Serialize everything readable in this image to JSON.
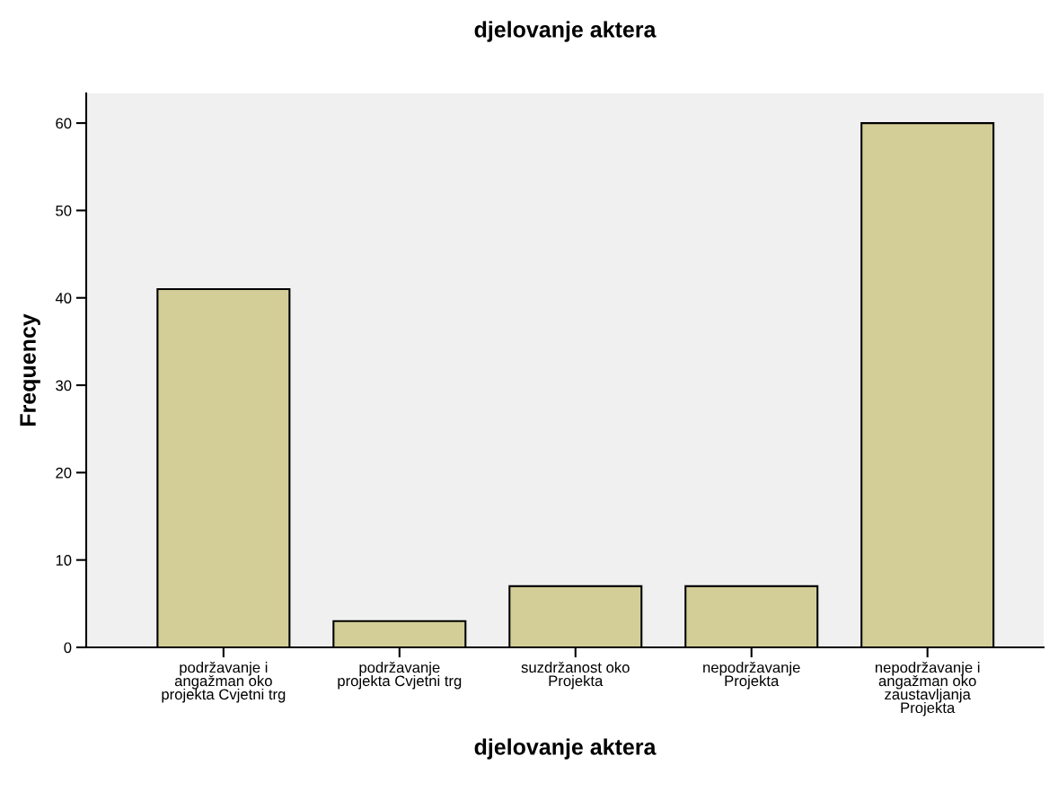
{
  "chart_data": {
    "type": "bar",
    "title": "djelovanje aktera",
    "xlabel": "djelovanje aktera",
    "ylabel": "Frequency",
    "categories": [
      "podržavanje i\nangažman oko\nprojekta Cvjetni trg",
      "podržavanje\nprojekta Cvjetni trg",
      "suzdržanost oko\nProjekta",
      "nepodržavanje\nProjekta",
      "nepodržavanje i\nangažman oko\nzaustavljanja\nProjekta"
    ],
    "values": [
      41,
      3,
      7,
      7,
      60
    ],
    "color": "#d3ce97",
    "ylim": [
      0,
      63.4
    ],
    "yticks": [
      0,
      10,
      20,
      30,
      40,
      50,
      60
    ],
    "grid": false,
    "legend": false
  }
}
